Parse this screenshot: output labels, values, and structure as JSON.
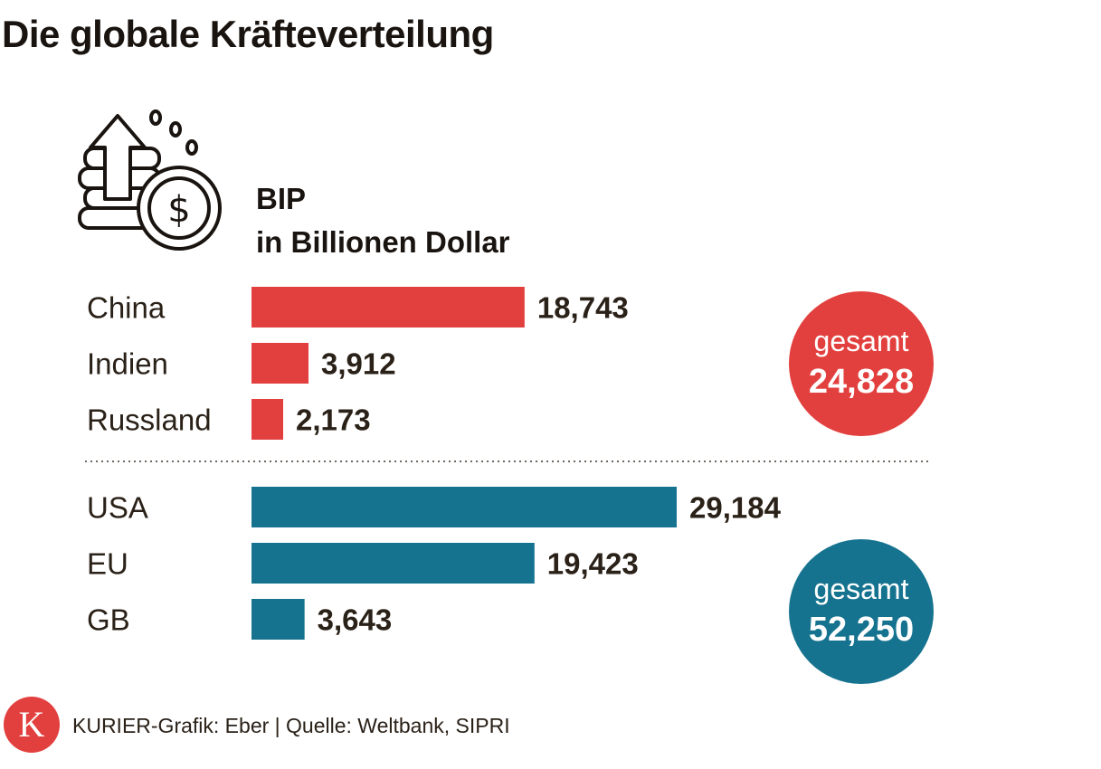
{
  "title": "Die globale Kräfteverteilung",
  "subtitle": {
    "line1": "BIP",
    "line2": "in Billionen Dollar"
  },
  "icon": "money-growth-icon",
  "colors": {
    "group1": "#e2403e",
    "group2": "#16738f",
    "text": "#2a2118"
  },
  "chart_data": {
    "type": "bar",
    "orientation": "horizontal",
    "title": "Die globale Kräfteverteilung",
    "ylabel": "BIP in Billionen Dollar",
    "xlim": [
      0,
      30
    ],
    "groups": [
      {
        "name": "group-1",
        "color": "#e2403e",
        "categories": [
          "China",
          "Indien",
          "Russland"
        ],
        "values": [
          18.743,
          3.912,
          2.173
        ],
        "value_labels": [
          "18,743",
          "3,912",
          "2,173"
        ],
        "total_label": "gesamt",
        "total_value": "24,828"
      },
      {
        "name": "group-2",
        "color": "#16738f",
        "categories": [
          "USA",
          "EU",
          "GB"
        ],
        "values": [
          29.184,
          19.423,
          3.643
        ],
        "value_labels": [
          "29,184",
          "19,423",
          "3,643"
        ],
        "total_label": "gesamt",
        "total_value": "52,250"
      }
    ]
  },
  "footer": {
    "logo_letter": "K",
    "text": "KURIER-Grafik: Eber | Quelle: Weltbank, SIPRI"
  }
}
